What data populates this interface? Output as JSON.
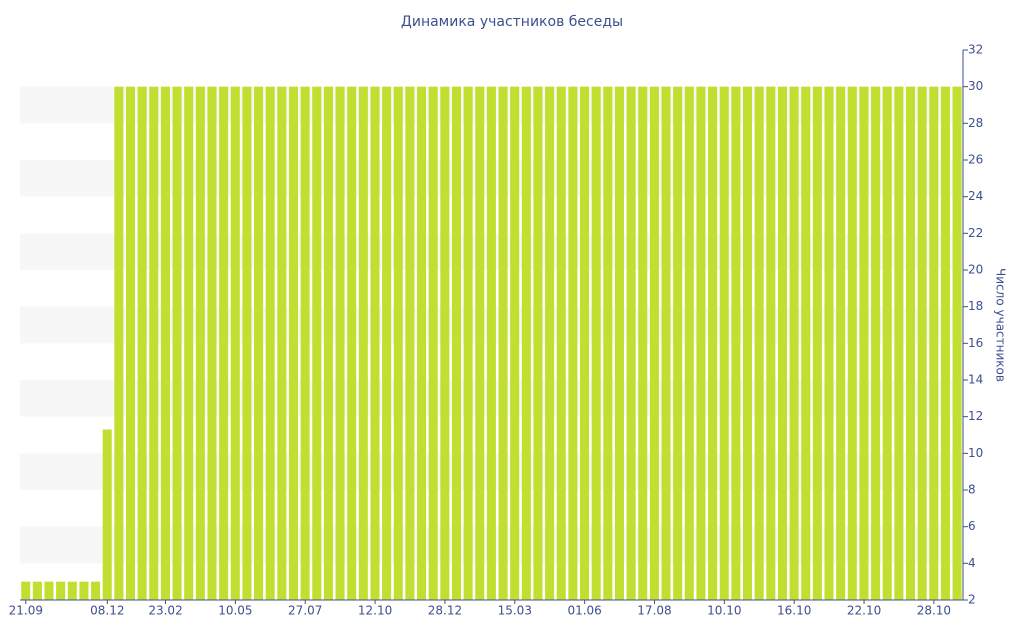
{
  "chart_data": {
    "type": "bar",
    "title": "Динамика участников беседы",
    "y_label": "Число участников",
    "categories": [
      "21.09",
      null,
      null,
      null,
      null,
      null,
      null,
      "08.12",
      null,
      null,
      null,
      null,
      "23.02",
      null,
      null,
      null,
      null,
      null,
      "10.05",
      null,
      null,
      null,
      null,
      null,
      "27.07",
      null,
      null,
      null,
      null,
      null,
      "12.10",
      null,
      null,
      null,
      null,
      null,
      "28.12",
      null,
      null,
      null,
      null,
      null,
      "15.03",
      null,
      null,
      null,
      null,
      null,
      "01.06",
      null,
      null,
      null,
      null,
      null,
      "17.08",
      null,
      null,
      null,
      null,
      null,
      "10.10",
      null,
      null,
      null,
      null,
      null,
      "16.10",
      null,
      null,
      null,
      null,
      null,
      "22.10",
      null,
      null,
      null,
      null,
      null,
      "28.10",
      null,
      null
    ],
    "values": [
      3,
      3,
      3,
      3,
      3,
      3,
      3,
      11.3,
      30,
      30,
      30,
      30,
      30,
      30,
      30,
      30,
      30,
      30,
      30,
      30,
      30,
      30,
      30,
      30,
      30,
      30,
      30,
      30,
      30,
      30,
      30,
      30,
      30,
      30,
      30,
      30,
      30,
      30,
      30,
      30,
      30,
      30,
      30,
      30,
      30,
      30,
      30,
      30,
      30,
      30,
      30,
      30,
      30,
      30,
      30,
      30,
      30,
      30,
      30,
      30,
      30,
      30,
      30,
      30,
      30,
      30,
      30,
      30,
      30,
      30,
      30,
      30,
      30,
      30,
      30,
      30,
      30,
      30,
      30,
      30,
      30
    ],
    "color": "#c0df30",
    "ylim": [
      2,
      32
    ],
    "yticks": [
      2,
      4,
      6,
      8,
      10,
      12,
      14,
      16,
      18,
      20,
      22,
      24,
      26,
      28,
      30,
      32
    ],
    "y_axis_side": "right",
    "grid": "bands"
  }
}
